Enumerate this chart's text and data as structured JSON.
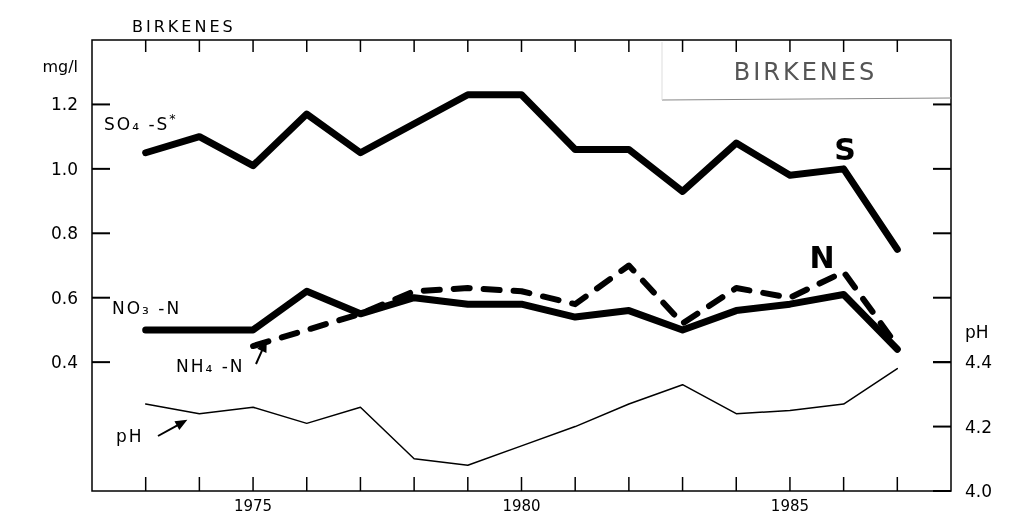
{
  "chart_data": {
    "type": "line",
    "title": "BIRKENES",
    "ylabel": "mg/l",
    "y2label": "pH",
    "x": [
      1973,
      1974,
      1975,
      1976,
      1977,
      1978,
      1979,
      1980,
      1981,
      1982,
      1983,
      1984,
      1985,
      1986,
      1987
    ],
    "series": [
      {
        "name": "SO₄ -S$^{*}$",
        "color": "#000000",
        "line_style": "solid",
        "values": [
          1.05,
          1.1,
          1.01,
          1.17,
          1.05,
          1.14,
          1.23,
          1.23,
          1.06,
          1.06,
          0.93,
          1.08,
          0.98,
          1.0,
          0.75
        ]
      },
      {
        "name": "NO₃ -N",
        "color": "#000000",
        "line_style": "solid",
        "values": [
          0.5,
          0.5,
          0.5,
          0.62,
          0.55,
          0.6,
          0.58,
          0.58,
          0.54,
          0.56,
          0.5,
          0.56,
          0.58,
          0.61,
          0.44
        ]
      },
      {
        "name": "NH₄ -N",
        "color": "#000000",
        "line_style": "dashed",
        "values": [
          null,
          null,
          0.45,
          0.5,
          0.55,
          0.62,
          0.63,
          0.62,
          0.58,
          0.7,
          0.52,
          0.63,
          0.6,
          0.68,
          0.45
        ]
      },
      {
        "name": "pH",
        "color": "#000000",
        "line_style": "solid",
        "axis": "y2",
        "values": [
          4.27,
          4.24,
          4.26,
          4.21,
          4.26,
          4.1,
          4.08,
          4.14,
          4.2,
          4.27,
          4.33,
          4.24,
          4.25,
          4.27,
          4.38
        ]
      }
    ],
    "xlim": [
      1972,
      1988
    ],
    "xticks": [
      {
        "value": 1973,
        "label": null
      },
      {
        "value": 1974,
        "label": null
      },
      1975,
      {
        "value": 1976,
        "label": null
      },
      {
        "value": 1977,
        "label": null
      },
      {
        "value": 1978,
        "label": null
      },
      {
        "value": 1979,
        "label": null
      },
      1980,
      {
        "value": 1981,
        "label": null
      },
      {
        "value": 1982,
        "label": null
      },
      {
        "value": 1983,
        "label": null
      },
      {
        "value": 1984,
        "label": null
      },
      1985,
      {
        "value": 1986,
        "label": null
      },
      {
        "value": 1987,
        "label": null
      }
    ],
    "ylim": [
      0,
      1.4
    ],
    "yticks": [
      0.4,
      0.6,
      0.8,
      {
        "value": 1,
        "label": "1.0"
      },
      1.2
    ],
    "y2lim": [
      4.0,
      5.4
    ],
    "y2ticks": [
      {
        "value": 4,
        "label": "4.0"
      },
      4.2,
      4.4
    ],
    "annotations": [
      "BIRKENES",
      "S",
      "N"
    ],
    "grid": false,
    "legend": "left",
    "marker": "none"
  }
}
